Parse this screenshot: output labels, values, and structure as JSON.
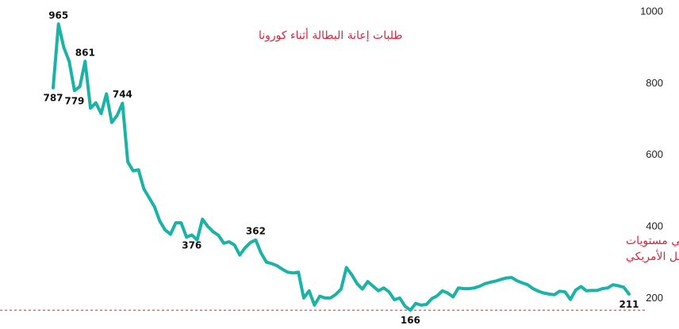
{
  "chart_data": {
    "type": "line",
    "title": "",
    "xlabel": "",
    "ylabel": "",
    "ylim": [
      170,
      1010
    ],
    "grid": false,
    "line_color": "#1bb3a6",
    "annotation_color": "#d7263d",
    "reference_line": {
      "value": 166,
      "style": "dashed"
    },
    "y_ticks": [
      {
        "value": 1000,
        "label": "1000"
      },
      {
        "value": 800,
        "label": "800"
      },
      {
        "value": 600,
        "label": "600"
      },
      {
        "value": 400,
        "label": "400"
      },
      {
        "value": 200,
        "label": "200"
      }
    ],
    "values": [
      787,
      965,
      900,
      861,
      779,
      790,
      861,
      730,
      745,
      715,
      770,
      690,
      710,
      744,
      580,
      555,
      558,
      505,
      480,
      455,
      415,
      390,
      378,
      410,
      410,
      370,
      376,
      362,
      420,
      400,
      385,
      375,
      353,
      357,
      348,
      320,
      340,
      355,
      362,
      325,
      300,
      296,
      290,
      280,
      272,
      270,
      272,
      200,
      220,
      180,
      205,
      200,
      200,
      210,
      225,
      285,
      265,
      240,
      225,
      246,
      233,
      220,
      228,
      217,
      195,
      200,
      177,
      166,
      185,
      180,
      182,
      198,
      206,
      220,
      214,
      203,
      228,
      226,
      226,
      228,
      233,
      240,
      244,
      247,
      252,
      256,
      257,
      248,
      242,
      237,
      226,
      219,
      214,
      211,
      209,
      219,
      217,
      196,
      222,
      232,
      220,
      221,
      221,
      226,
      228,
      237,
      234,
      230,
      211
    ],
    "data_labels": [
      {
        "index": 0,
        "text": "787",
        "position": "below"
      },
      {
        "index": 1,
        "text": "965",
        "position": "above"
      },
      {
        "index": 4,
        "text": "779",
        "position": "below"
      },
      {
        "index": 6,
        "text": "861",
        "position": "above"
      },
      {
        "index": 13,
        "text": "744",
        "position": "above"
      },
      {
        "index": 26,
        "text": "376",
        "position": "below"
      },
      {
        "index": 38,
        "text": "362",
        "position": "above"
      },
      {
        "index": 67,
        "text": "166",
        "position": "below"
      },
      {
        "index": 108,
        "text": "211",
        "position": "below"
      }
    ],
    "annotations": [
      {
        "lines": [
          "طلبات إعانة البطالة أثناء كورونا"
        ],
        "location": "top-left"
      },
      {
        "lines": [
          "استمرار الطلبات الاسبوعية الجديدة في مستويات",
          "منخفضة يعني قوة مستمرة لسوق العمل الأمريكي"
        ],
        "location": "lower-right"
      }
    ]
  }
}
